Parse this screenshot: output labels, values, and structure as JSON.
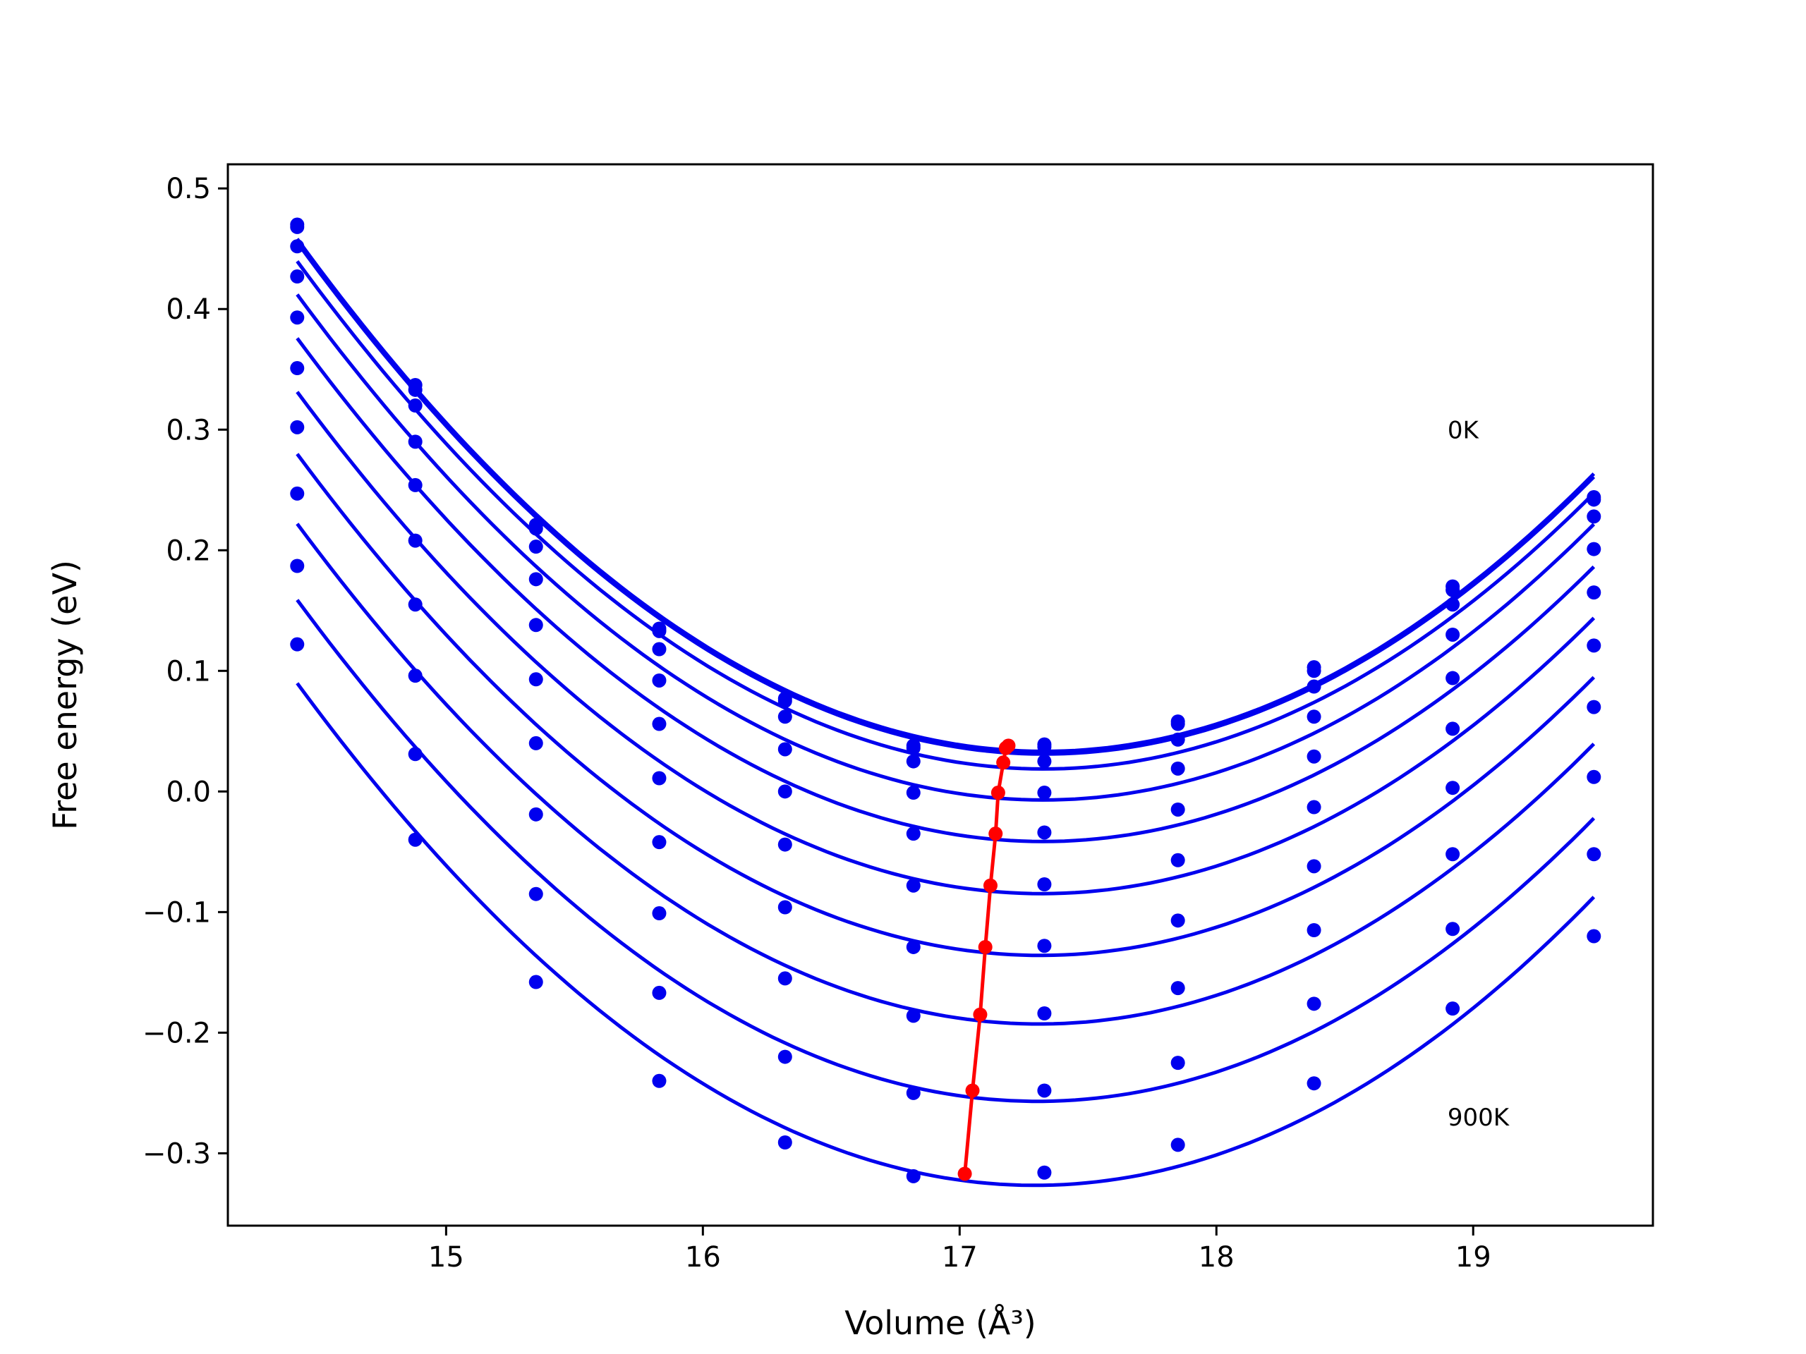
{
  "chart_data": {
    "type": "line",
    "xlabel": "Volume (Å³)",
    "ylabel": "Free energy (eV)",
    "xlim": [
      14.15,
      19.7
    ],
    "ylim": [
      -0.36,
      0.52
    ],
    "xticks": [
      15,
      16,
      17,
      18,
      19
    ],
    "xtick_labels": [
      "15",
      "16",
      "17",
      "18",
      "19"
    ],
    "yticks": [
      -0.3,
      -0.2,
      -0.1,
      0.0,
      0.1,
      0.2,
      0.3,
      0.4,
      0.5
    ],
    "ytick_labels": [
      "−0.3",
      "−0.2",
      "−0.1",
      "0.0",
      "0.1",
      "0.2",
      "0.3",
      "0.4",
      "0.5"
    ],
    "grid": false,
    "legend": false,
    "annotations": [
      {
        "text": "0K",
        "x": 18.9,
        "y": 0.3
      },
      {
        "text": "900K",
        "x": 18.9,
        "y": -0.27
      }
    ],
    "colors": {
      "curves": "#0000ee",
      "minima": "#ff0000"
    },
    "x": [
      14.42,
      14.88,
      15.35,
      15.83,
      16.32,
      16.82,
      17.33,
      17.85,
      18.38,
      18.92,
      19.47
    ],
    "series": [
      {
        "values": [
          0.47,
          0.337,
          0.221,
          0.135,
          0.077,
          0.038,
          0.039,
          0.058,
          0.103,
          0.17,
          0.244
        ]
      },
      {
        "values": [
          0.468,
          0.333,
          0.218,
          0.133,
          0.075,
          0.036,
          0.037,
          0.056,
          0.1,
          0.167,
          0.242
        ]
      },
      {
        "values": [
          0.452,
          0.32,
          0.203,
          0.118,
          0.062,
          0.025,
          0.025,
          0.043,
          0.087,
          0.155,
          0.228
        ]
      },
      {
        "values": [
          0.427,
          0.29,
          0.176,
          0.092,
          0.035,
          -0.001,
          -0.001,
          0.019,
          0.062,
          0.13,
          0.201
        ]
      },
      {
        "values": [
          0.393,
          0.254,
          0.138,
          0.056,
          0.0,
          -0.035,
          -0.034,
          -0.015,
          0.029,
          0.094,
          0.165
        ]
      },
      {
        "values": [
          0.351,
          0.208,
          0.093,
          0.011,
          -0.044,
          -0.078,
          -0.077,
          -0.057,
          -0.013,
          0.052,
          0.121
        ]
      },
      {
        "values": [
          0.302,
          0.155,
          0.04,
          -0.042,
          -0.096,
          -0.129,
          -0.128,
          -0.107,
          -0.062,
          0.003,
          0.07
        ]
      },
      {
        "values": [
          0.247,
          0.096,
          -0.019,
          -0.101,
          -0.155,
          -0.186,
          -0.184,
          -0.163,
          -0.115,
          -0.052,
          0.012
        ]
      },
      {
        "values": [
          0.187,
          0.031,
          -0.085,
          -0.167,
          -0.22,
          -0.25,
          -0.248,
          -0.225,
          -0.176,
          -0.114,
          -0.052
        ]
      },
      {
        "values": [
          0.122,
          -0.04,
          -0.158,
          -0.24,
          -0.291,
          -0.319,
          -0.316,
          -0.293,
          -0.242,
          -0.18,
          -0.12
        ]
      }
    ],
    "minima": {
      "x": [
        17.19,
        17.18,
        17.17,
        17.15,
        17.14,
        17.12,
        17.1,
        17.08,
        17.05,
        17.02
      ],
      "y": [
        0.038,
        0.036,
        0.024,
        -0.001,
        -0.035,
        -0.078,
        -0.129,
        -0.185,
        -0.248,
        -0.317
      ]
    }
  }
}
